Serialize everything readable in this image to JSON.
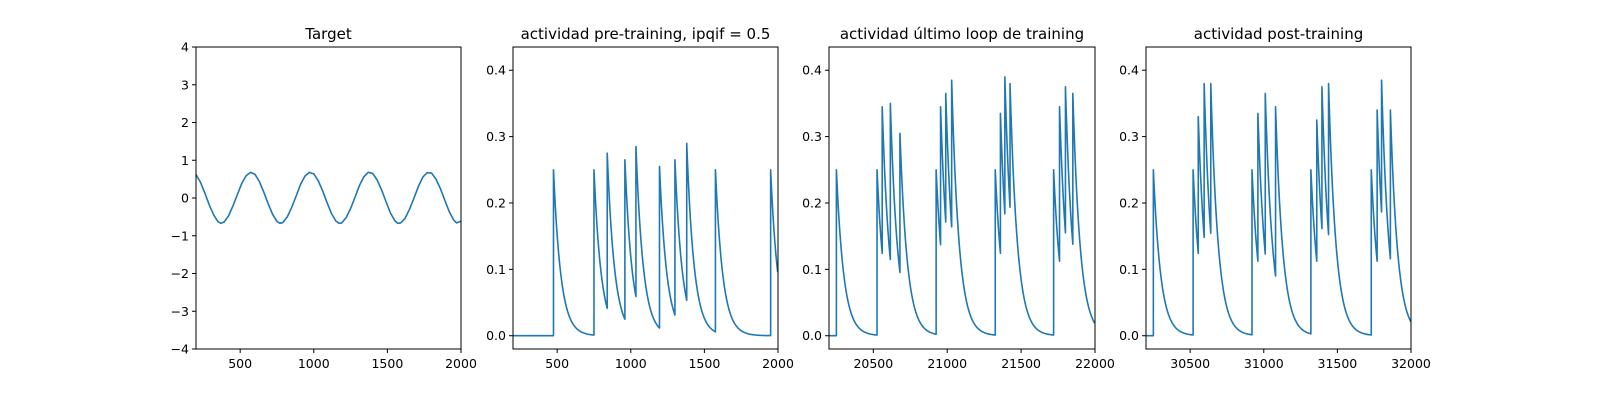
{
  "figure": {
    "line_color": "#1f77b4"
  },
  "chart_data": [
    {
      "type": "line",
      "title": "Target",
      "xlabel": "",
      "ylabel": "",
      "xlim": [
        200,
        2000
      ],
      "ylim": [
        -4,
        4
      ],
      "xticks": [
        500,
        1000,
        1500,
        2000
      ],
      "xtick_labels": [
        "500",
        "1000",
        "1500",
        "2000"
      ],
      "yticks": [
        -4,
        -3,
        -2,
        -1,
        0,
        1,
        2,
        3,
        4
      ],
      "ytick_labels": [
        "−4",
        "−3",
        "−2",
        "−1",
        "0",
        "1",
        "2",
        "3",
        "4"
      ],
      "grid": false,
      "series": [
        {
          "x": [
            200,
            230,
            260,
            290,
            320,
            350,
            370,
            390,
            420,
            450,
            480,
            510,
            540,
            570,
            600,
            630,
            660,
            690,
            720,
            750,
            770,
            790,
            820,
            850,
            880,
            910,
            940,
            970,
            1000,
            1030,
            1060,
            1090,
            1120,
            1150,
            1170,
            1190,
            1220,
            1250,
            1280,
            1310,
            1340,
            1370,
            1400,
            1430,
            1460,
            1490,
            1520,
            1550,
            1570,
            1590,
            1620,
            1650,
            1680,
            1710,
            1740,
            1770,
            1800,
            1830,
            1860,
            1890,
            1920,
            1950,
            1970,
            1990,
            2000
          ],
          "y": [
            0.62,
            0.42,
            0.13,
            -0.18,
            -0.45,
            -0.63,
            -0.67,
            -0.64,
            -0.48,
            -0.22,
            0.08,
            0.38,
            0.59,
            0.68,
            0.63,
            0.44,
            0.16,
            -0.15,
            -0.43,
            -0.62,
            -0.67,
            -0.65,
            -0.5,
            -0.25,
            0.05,
            0.36,
            0.58,
            0.68,
            0.64,
            0.46,
            0.19,
            -0.12,
            -0.41,
            -0.61,
            -0.67,
            -0.66,
            -0.52,
            -0.28,
            0.02,
            0.33,
            0.56,
            0.68,
            0.65,
            0.48,
            0.22,
            -0.09,
            -0.39,
            -0.6,
            -0.67,
            -0.66,
            -0.54,
            -0.3,
            -0.01,
            0.3,
            0.55,
            0.67,
            0.66,
            0.5,
            0.25,
            -0.06,
            -0.36,
            -0.58,
            -0.66,
            -0.63,
            -0.61
          ]
        }
      ]
    },
    {
      "type": "line",
      "title": "actividad pre-training, ipqif = 0.5",
      "xlabel": "",
      "ylabel": "",
      "xlim": [
        200,
        2000
      ],
      "ylim": [
        -0.02,
        0.435
      ],
      "xticks": [
        500,
        1000,
        1500,
        2000
      ],
      "xtick_labels": [
        "500",
        "1000",
        "1500",
        "2000"
      ],
      "yticks": [
        0.0,
        0.1,
        0.2,
        0.3,
        0.4
      ],
      "ytick_labels": [
        "0.0",
        "0.1",
        "0.2",
        "0.3",
        "0.4"
      ],
      "grid": false,
      "baseline": 0.0,
      "series": [
        {
          "spikes": [
            [
              475,
              0.25
            ],
            [
              750,
              0.25
            ],
            [
              840,
              0.275
            ],
            [
              960,
              0.265
            ],
            [
              1035,
              0.285
            ],
            [
              1195,
              0.255
            ],
            [
              1300,
              0.265
            ],
            [
              1380,
              0.29
            ],
            [
              1575,
              0.25
            ],
            [
              1950,
              0.25
            ]
          ]
        }
      ]
    },
    {
      "type": "line",
      "title": "actividad último loop de training",
      "xlabel": "",
      "ylabel": "",
      "xlim": [
        20200,
        22000
      ],
      "ylim": [
        -0.02,
        0.435
      ],
      "xticks": [
        20500,
        21000,
        21500,
        22000
      ],
      "xtick_labels": [
        "20500",
        "21000",
        "21500",
        "22000"
      ],
      "yticks": [
        0.0,
        0.1,
        0.2,
        0.3,
        0.4
      ],
      "ytick_labels": [
        "0.0",
        "0.1",
        "0.2",
        "0.3",
        "0.4"
      ],
      "grid": false,
      "baseline": 0.0,
      "series": [
        {
          "spikes": [
            [
              20250,
              0.25
            ],
            [
              20525,
              0.25
            ],
            [
              20560,
              0.345
            ],
            [
              20615,
              0.35
            ],
            [
              20680,
              0.305
            ],
            [
              20925,
              0.25
            ],
            [
              20955,
              0.345
            ],
            [
              20990,
              0.365
            ],
            [
              21030,
              0.385
            ],
            [
              21325,
              0.25
            ],
            [
              21360,
              0.335
            ],
            [
              21390,
              0.39
            ],
            [
              21425,
              0.38
            ],
            [
              21720,
              0.25
            ],
            [
              21760,
              0.345
            ],
            [
              21800,
              0.375
            ],
            [
              21850,
              0.365
            ]
          ]
        }
      ]
    },
    {
      "type": "line",
      "title": "actividad post-training",
      "xlabel": "",
      "ylabel": "",
      "xlim": [
        30200,
        32000
      ],
      "ylim": [
        -0.02,
        0.435
      ],
      "xticks": [
        30500,
        31000,
        31500,
        32000
      ],
      "xtick_labels": [
        "30500",
        "31000",
        "31500",
        "32000"
      ],
      "yticks": [
        0.0,
        0.1,
        0.2,
        0.3,
        0.4
      ],
      "ytick_labels": [
        "0.0",
        "0.1",
        "0.2",
        "0.3",
        "0.4"
      ],
      "grid": false,
      "baseline": 0.0,
      "series": [
        {
          "spikes": [
            [
              30250,
              0.25
            ],
            [
              30520,
              0.25
            ],
            [
              30555,
              0.33
            ],
            [
              30595,
              0.38
            ],
            [
              30640,
              0.38
            ],
            [
              30920,
              0.25
            ],
            [
              30960,
              0.335
            ],
            [
              31010,
              0.365
            ],
            [
              31080,
              0.345
            ],
            [
              31320,
              0.25
            ],
            [
              31360,
              0.325
            ],
            [
              31395,
              0.375
            ],
            [
              31440,
              0.38
            ],
            [
              31730,
              0.25
            ],
            [
              31770,
              0.34
            ],
            [
              31800,
              0.385
            ],
            [
              31860,
              0.34
            ]
          ]
        }
      ]
    }
  ]
}
